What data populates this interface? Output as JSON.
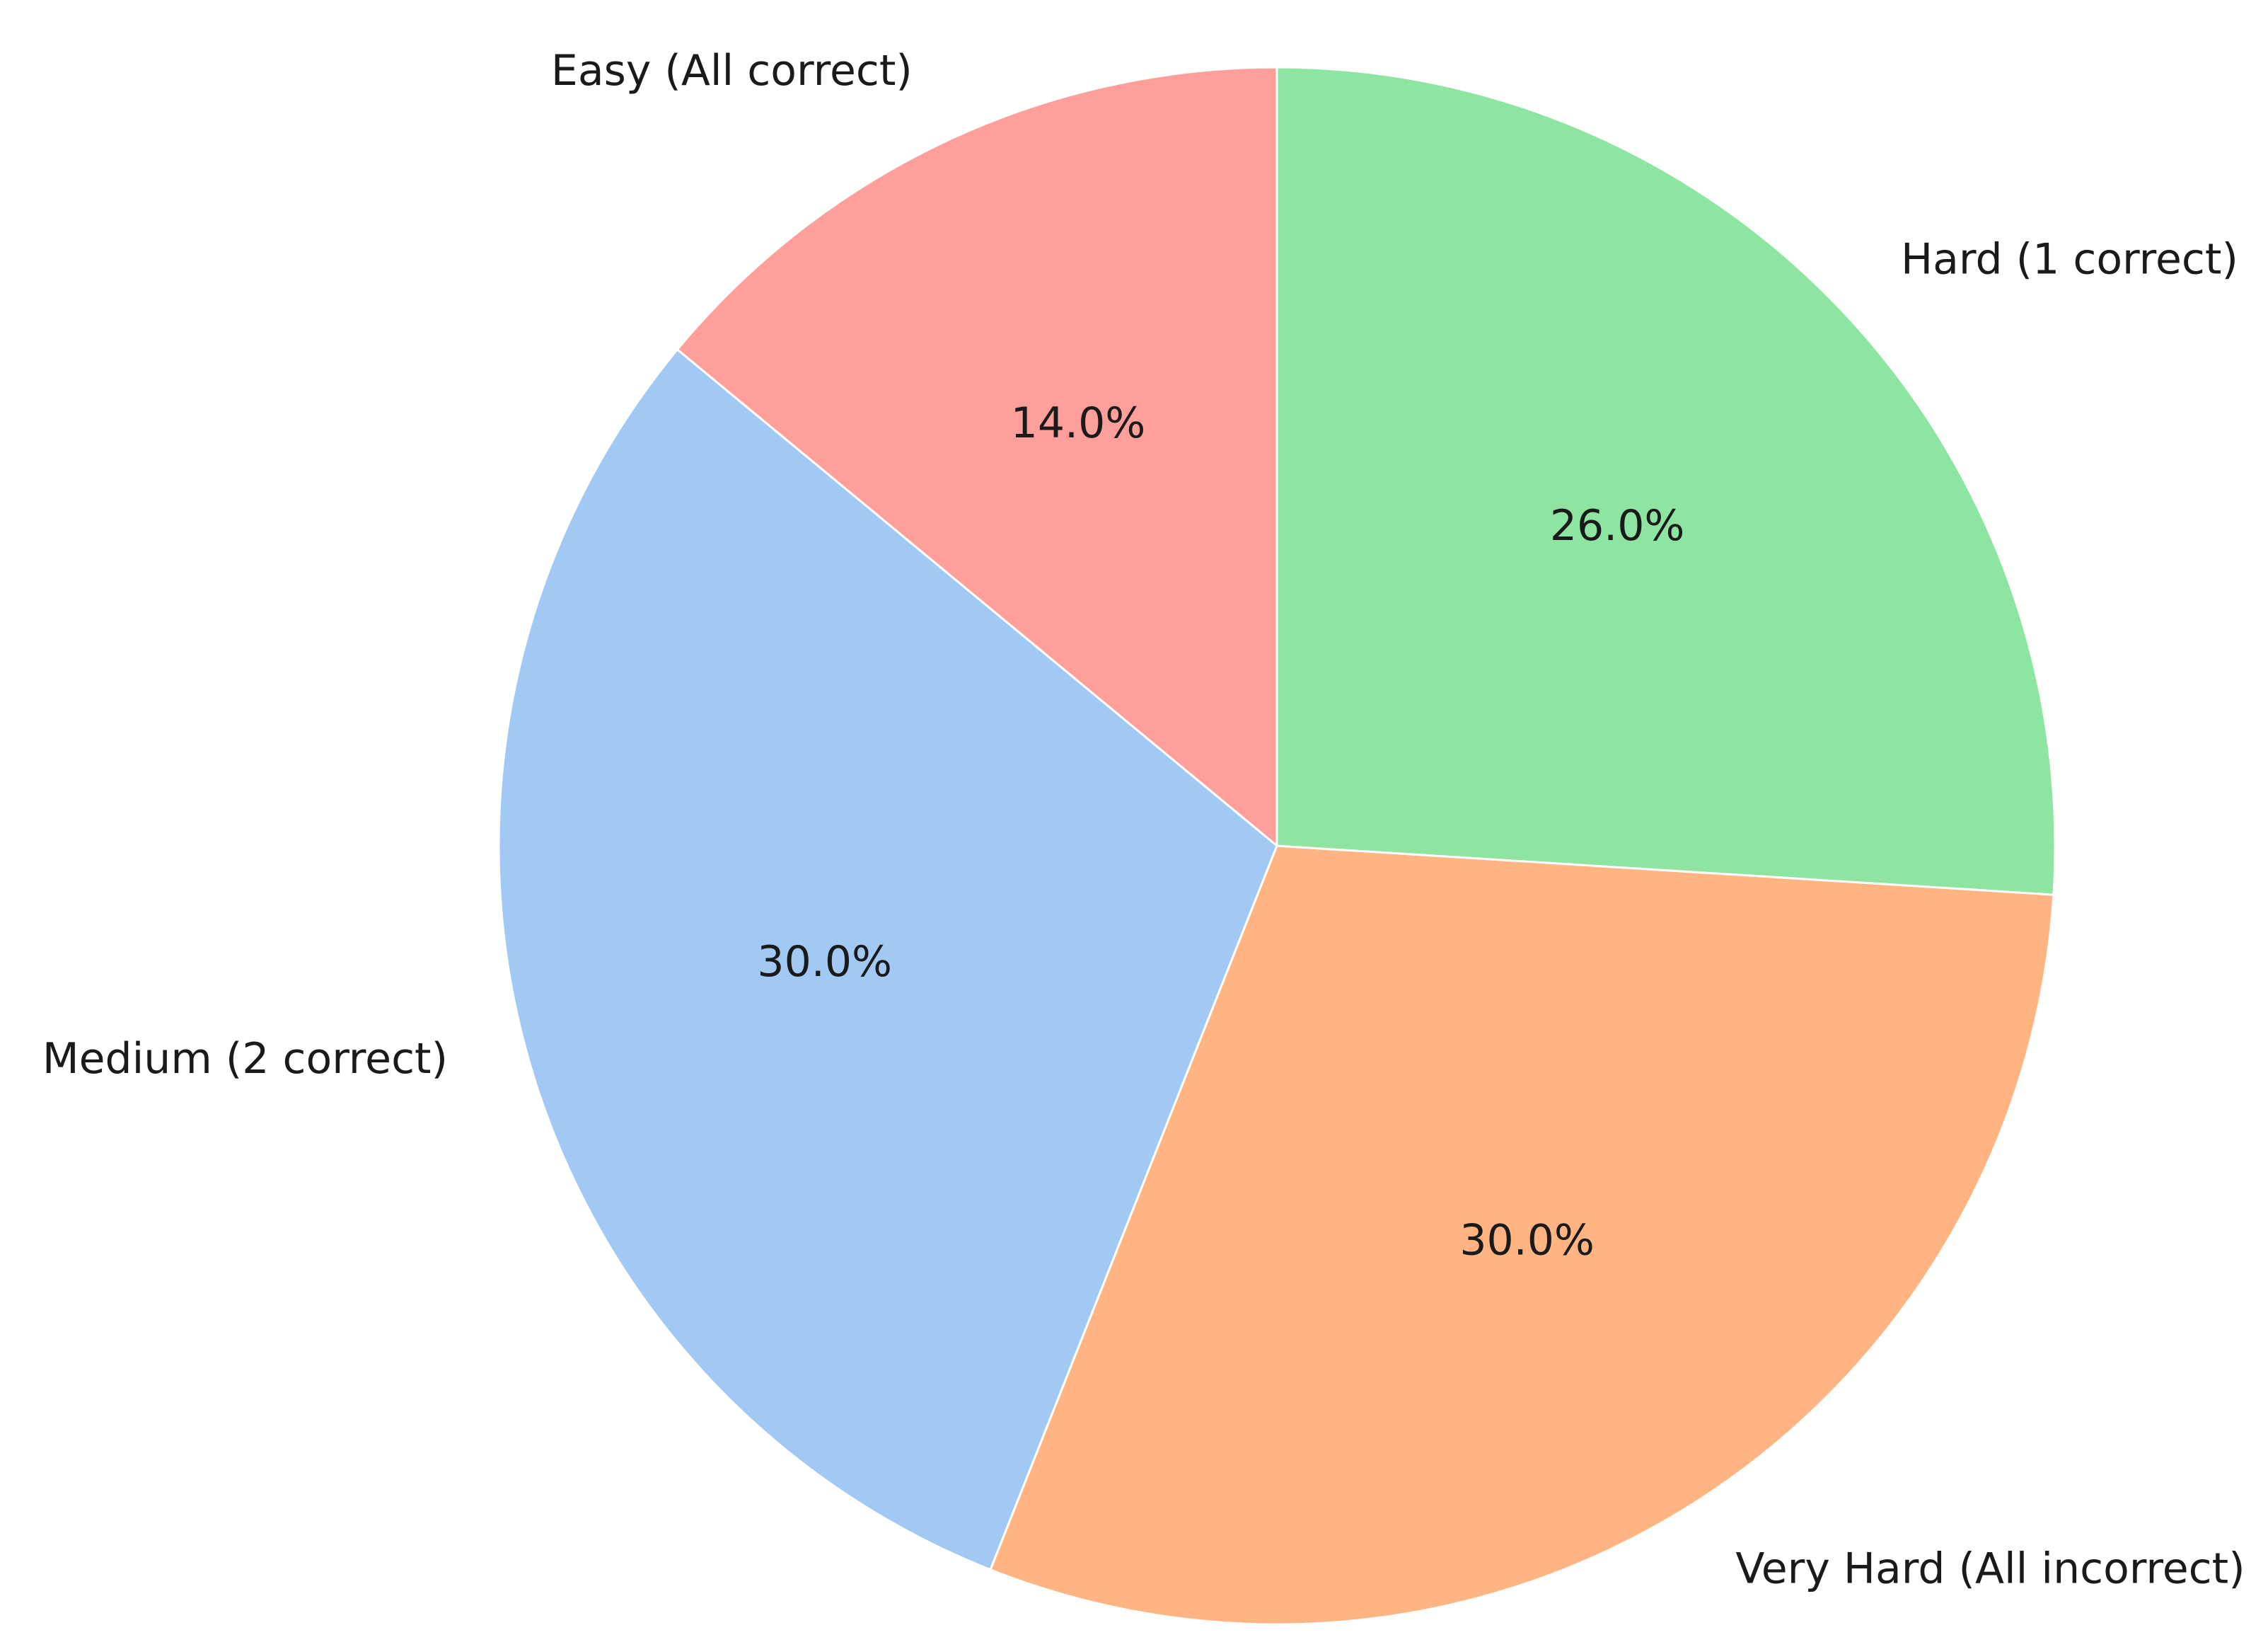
{
  "chart_data": {
    "type": "pie",
    "categories": [
      "Easy (All correct)",
      "Medium (2 correct)",
      "Very Hard (All incorrect)",
      "Hard (1 correct)"
    ],
    "values": [
      14.0,
      30.0,
      30.0,
      26.0
    ],
    "value_labels": [
      "14.0%",
      "30.0%",
      "30.0%",
      "26.0%"
    ],
    "colors": [
      "#ff9f9b",
      "#a1c9f4",
      "#ffb482",
      "#8de5a1"
    ],
    "start_angle_deg": 90,
    "direction": "counterclockwise",
    "legend": "none"
  }
}
